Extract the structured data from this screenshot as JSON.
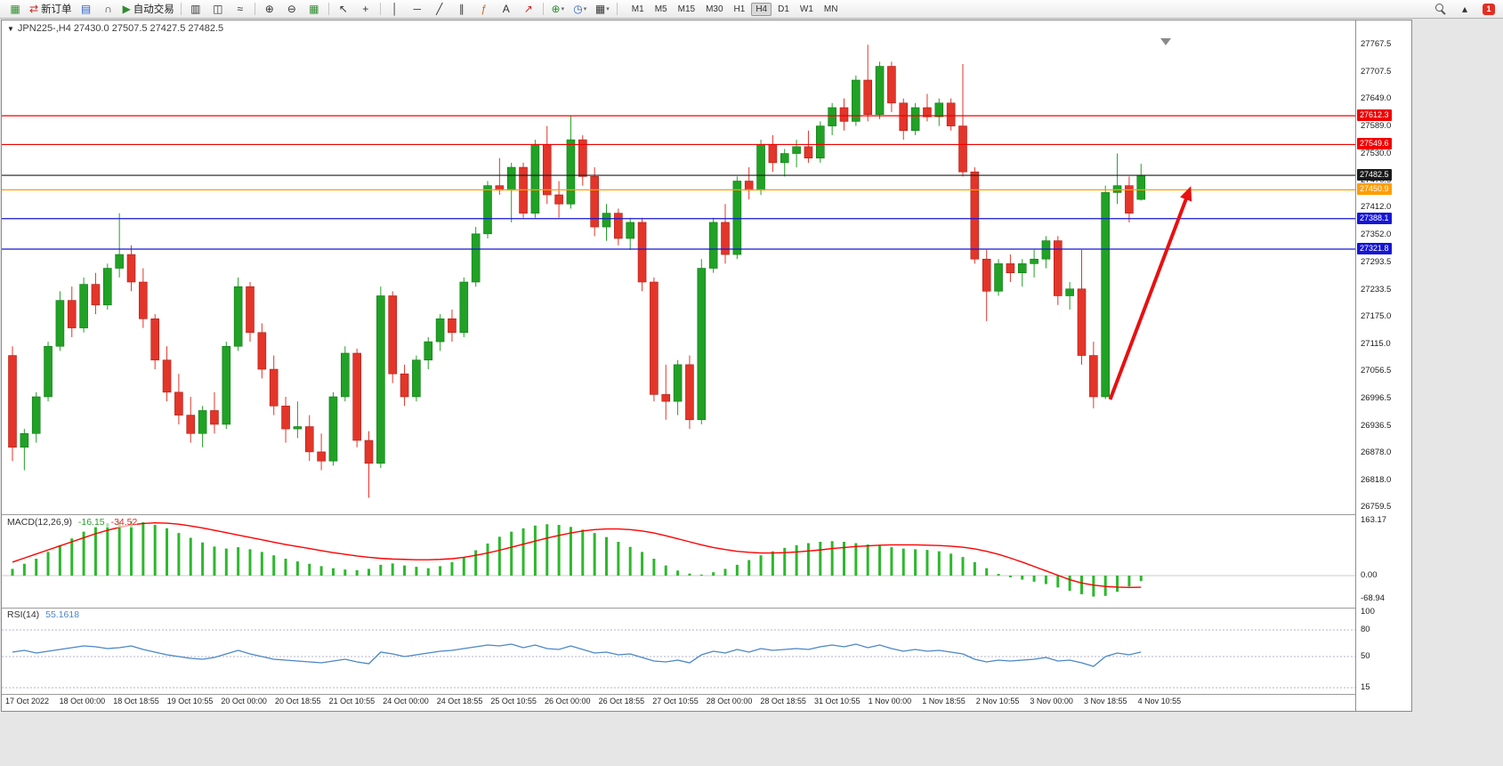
{
  "toolbar": {
    "new_order_label": "新订单",
    "autotrading_label": "自动交易",
    "timeframes": [
      "M1",
      "M5",
      "M15",
      "M30",
      "H1",
      "H4",
      "D1",
      "W1",
      "MN"
    ],
    "active_timeframe": "H4",
    "notification_count": "1",
    "icons": {
      "new_chart": "▦",
      "new_order": "⇄",
      "profiles": "▤",
      "market_depth": "∩",
      "autotrading": "▶",
      "chart_bars": "▥",
      "chart_candles": "◫",
      "chart_line": "≈",
      "zoom_in": "⊕",
      "zoom_out": "⊖",
      "tile_windows": "▦",
      "cursor": "↖",
      "crosshair": "+",
      "vline": "│",
      "hline": "─",
      "trendline": "╱",
      "channel": "∥",
      "fibonacci": "ƒ",
      "text": "A",
      "arrows": "↗",
      "indicators": "⊕",
      "periods": "◷",
      "templates": "▦",
      "scroll_up": "▴"
    }
  },
  "chart": {
    "symbol_period": "JPN225-,H4",
    "ohlc_text": "27430.0 27507.5 27427.5 27482.5",
    "dropdown_glyph": "▼"
  },
  "chart_data": {
    "type": "candlestick",
    "title": "JPN225- H4 chart with MACD and RSI",
    "symbol": "JPN225-",
    "timeframe": "H4",
    "current_bar": {
      "open": 27430.0,
      "high": 27507.5,
      "low": 27427.5,
      "close": 27482.5
    },
    "y_axis": {
      "min": 26748,
      "max": 27785,
      "ticks": [
        27767.5,
        27707.5,
        27649.0,
        27589.0,
        27530.0,
        27470.5,
        27412.0,
        27352.0,
        27293.5,
        27233.5,
        27175.0,
        27115.0,
        27056.5,
        26996.5,
        26936.5,
        26878.0,
        26818.0,
        26759.5
      ]
    },
    "x_labels": [
      "17 Oct 2022",
      "18 Oct 00:00",
      "18 Oct 18:55",
      "19 Oct 10:55",
      "20 Oct 00:00",
      "20 Oct 18:55",
      "21 Oct 10:55",
      "24 Oct 00:00",
      "24 Oct 18:55",
      "25 Oct 10:55",
      "26 Oct 00:00",
      "26 Oct 18:55",
      "27 Oct 10:55",
      "28 Oct 00:00",
      "28 Oct 18:55",
      "31 Oct 10:55",
      "1 Nov 00:00",
      "1 Nov 18:55",
      "2 Nov 10:55",
      "3 Nov 00:00",
      "3 Nov 18:55",
      "4 Nov 10:55"
    ],
    "candles": [
      [
        27090,
        27110,
        26860,
        26890
      ],
      [
        26890,
        26930,
        26840,
        26920
      ],
      [
        26920,
        27010,
        26900,
        27000
      ],
      [
        27000,
        27120,
        26990,
        27110
      ],
      [
        27110,
        27230,
        27100,
        27210
      ],
      [
        27210,
        27240,
        27130,
        27150
      ],
      [
        27150,
        27260,
        27140,
        27245
      ],
      [
        27245,
        27270,
        27180,
        27200
      ],
      [
        27200,
        27290,
        27190,
        27280
      ],
      [
        27280,
        27400,
        27260,
        27310
      ],
      [
        27310,
        27330,
        27230,
        27250
      ],
      [
        27250,
        27280,
        27150,
        27170
      ],
      [
        27170,
        27180,
        27060,
        27080
      ],
      [
        27080,
        27110,
        26990,
        27010
      ],
      [
        27010,
        27050,
        26940,
        26960
      ],
      [
        26960,
        27000,
        26900,
        26920
      ],
      [
        26920,
        26980,
        26890,
        26970
      ],
      [
        26970,
        27010,
        26920,
        26940
      ],
      [
        26940,
        27120,
        26930,
        27110
      ],
      [
        27110,
        27260,
        27100,
        27240
      ],
      [
        27240,
        27250,
        27120,
        27140
      ],
      [
        27140,
        27160,
        27040,
        27060
      ],
      [
        27060,
        27090,
        26960,
        26980
      ],
      [
        26980,
        27000,
        26900,
        26930
      ],
      [
        26930,
        26990,
        26910,
        26935
      ],
      [
        26935,
        26960,
        26860,
        26880
      ],
      [
        26880,
        26920,
        26840,
        26860
      ],
      [
        26860,
        27010,
        26850,
        27000
      ],
      [
        27000,
        27110,
        26990,
        27095
      ],
      [
        27095,
        27105,
        26890,
        26905
      ],
      [
        26905,
        26925,
        26780,
        26855
      ],
      [
        26855,
        27240,
        26845,
        27220
      ],
      [
        27220,
        27230,
        27030,
        27050
      ],
      [
        27050,
        27070,
        26980,
        27000
      ],
      [
        27000,
        27090,
        26990,
        27080
      ],
      [
        27080,
        27130,
        27060,
        27120
      ],
      [
        27120,
        27180,
        27100,
        27170
      ],
      [
        27170,
        27190,
        27120,
        27140
      ],
      [
        27140,
        27260,
        27130,
        27250
      ],
      [
        27250,
        27370,
        27240,
        27355
      ],
      [
        27355,
        27470,
        27345,
        27460
      ],
      [
        27460,
        27520,
        27440,
        27450
      ],
      [
        27450,
        27510,
        27380,
        27500
      ],
      [
        27500,
        27510,
        27390,
        27400
      ],
      [
        27400,
        27560,
        27390,
        27550
      ],
      [
        27550,
        27590,
        27420,
        27440
      ],
      [
        27440,
        27470,
        27390,
        27420
      ],
      [
        27420,
        27612,
        27410,
        27560
      ],
      [
        27560,
        27570,
        27460,
        27480
      ],
      [
        27480,
        27500,
        27350,
        27370
      ],
      [
        27370,
        27420,
        27340,
        27400
      ],
      [
        27400,
        27410,
        27330,
        27345
      ],
      [
        27345,
        27390,
        27320,
        27380
      ],
      [
        27380,
        27390,
        27230,
        27250
      ],
      [
        27250,
        27260,
        26990,
        27005
      ],
      [
        27005,
        27070,
        26950,
        26990
      ],
      [
        26990,
        27080,
        26960,
        27070
      ],
      [
        27070,
        27090,
        26930,
        26950
      ],
      [
        26950,
        27300,
        26940,
        27280
      ],
      [
        27280,
        27390,
        27270,
        27380
      ],
      [
        27380,
        27420,
        27290,
        27310
      ],
      [
        27310,
        27480,
        27300,
        27470
      ],
      [
        27470,
        27500,
        27430,
        27450
      ],
      [
        27450,
        27560,
        27440,
        27550
      ],
      [
        27550,
        27570,
        27490,
        27510
      ],
      [
        27510,
        27540,
        27480,
        27530
      ],
      [
        27530,
        27560,
        27500,
        27545
      ],
      [
        27545,
        27580,
        27510,
        27520
      ],
      [
        27520,
        27600,
        27510,
        27590
      ],
      [
        27590,
        27640,
        27570,
        27630
      ],
      [
        27630,
        27650,
        27580,
        27600
      ],
      [
        27600,
        27700,
        27590,
        27690
      ],
      [
        27690,
        27767,
        27600,
        27615
      ],
      [
        27615,
        27730,
        27605,
        27720
      ],
      [
        27720,
        27730,
        27620,
        27640
      ],
      [
        27640,
        27650,
        27560,
        27580
      ],
      [
        27580,
        27640,
        27570,
        27630
      ],
      [
        27630,
        27660,
        27600,
        27610
      ],
      [
        27610,
        27650,
        27590,
        27640
      ],
      [
        27640,
        27650,
        27580,
        27590
      ],
      [
        27590,
        27725,
        27480,
        27490
      ],
      [
        27490,
        27500,
        27290,
        27300
      ],
      [
        27300,
        27320,
        27165,
        27230
      ],
      [
        27230,
        27300,
        27220,
        27290
      ],
      [
        27290,
        27310,
        27250,
        27270
      ],
      [
        27270,
        27300,
        27240,
        27290
      ],
      [
        27290,
        27320,
        27260,
        27300
      ],
      [
        27300,
        27350,
        27280,
        27340
      ],
      [
        27340,
        27350,
        27200,
        27220
      ],
      [
        27220,
        27250,
        27190,
        27235
      ],
      [
        27235,
        27320,
        27070,
        27090
      ],
      [
        27090,
        27120,
        26975,
        27000
      ],
      [
        27000,
        27460,
        26995,
        27445
      ],
      [
        27445,
        27530,
        27420,
        27460
      ],
      [
        27460,
        27480,
        27380,
        27400
      ],
      [
        27430,
        27507.5,
        27427.5,
        27482.5
      ]
    ],
    "hlines": [
      {
        "price": 27612.3,
        "color": "#f00000"
      },
      {
        "price": 27549.6,
        "color": "#f00000"
      },
      {
        "price": 27482.5,
        "color": "#1a1a1a"
      },
      {
        "price": 27450.9,
        "color": "#ff9d00"
      },
      {
        "price": 27388.1,
        "color": "#1616d6"
      },
      {
        "price": 27321.8,
        "color": "#1616d6"
      }
    ],
    "arrow": {
      "from_bar": 92.4,
      "from_price": 26994,
      "to_bar": 99.2,
      "to_price": 27459,
      "color": "#e81010"
    },
    "macd": {
      "label": "MACD(12,26,9)",
      "value_main": "-16.15",
      "value_signal": "-34.52",
      "scale": [
        163.17,
        0.0,
        -68.94
      ],
      "histogram": [
        20,
        35,
        50,
        70,
        90,
        110,
        130,
        145,
        155,
        160,
        162,
        158,
        150,
        140,
        126,
        112,
        98,
        86,
        80,
        84,
        78,
        70,
        60,
        50,
        42,
        35,
        28,
        22,
        18,
        16,
        20,
        32,
        36,
        30,
        26,
        22,
        28,
        40,
        55,
        75,
        95,
        115,
        130,
        140,
        148,
        152,
        150,
        144,
        136,
        126,
        114,
        100,
        85,
        70,
        50,
        30,
        15,
        6,
        3,
        10,
        20,
        32,
        46,
        60,
        72,
        82,
        90,
        96,
        100,
        102,
        100,
        96,
        92,
        88,
        84,
        80,
        78,
        76,
        72,
        65,
        55,
        40,
        22,
        5,
        -5,
        -12,
        -18,
        -25,
        -35,
        -45,
        -55,
        -62,
        -60,
        -48,
        -32,
        -16
      ],
      "signal": [
        40,
        52,
        64,
        76,
        88,
        100,
        112,
        124,
        134,
        143,
        150,
        154,
        156,
        155,
        152,
        147,
        141,
        134,
        127,
        120,
        113,
        106,
        99,
        92,
        86,
        80,
        74,
        68,
        63,
        58,
        54,
        51,
        49,
        48,
        47,
        47,
        48,
        50,
        54,
        60,
        67,
        75,
        84,
        93,
        102,
        111,
        119,
        126,
        132,
        136,
        138,
        138,
        136,
        132,
        126,
        118,
        109,
        100,
        91,
        83,
        77,
        72,
        69,
        67,
        67,
        68,
        70,
        73,
        76,
        80,
        83,
        86,
        88,
        90,
        91,
        91,
        91,
        90,
        89,
        87,
        84,
        79,
        72,
        63,
        52,
        40,
        27,
        14,
        1,
        -12,
        -22,
        -28,
        -32,
        -34,
        -35,
        -34.5
      ]
    },
    "rsi": {
      "label": "RSI(14)",
      "value": "55.1618",
      "levels": [
        100,
        80,
        50,
        15
      ],
      "levels_dashed": [
        80,
        50,
        15
      ],
      "values": [
        55,
        57,
        54,
        56,
        58,
        60,
        62,
        61,
        59,
        60,
        62,
        58,
        55,
        52,
        50,
        48,
        47,
        49,
        53,
        57,
        53,
        50,
        47,
        46,
        45,
        44,
        43,
        45,
        47,
        44,
        42,
        55,
        53,
        50,
        52,
        54,
        56,
        57,
        59,
        61,
        63,
        62,
        64,
        60,
        63,
        59,
        58,
        62,
        58,
        54,
        55,
        52,
        53,
        49,
        45,
        44,
        46,
        43,
        52,
        56,
        54,
        58,
        55,
        59,
        57,
        58,
        59,
        58,
        61,
        63,
        61,
        64,
        60,
        63,
        59,
        56,
        58,
        56,
        57,
        55,
        53,
        47,
        44,
        46,
        45,
        46,
        47,
        49,
        45,
        46,
        43,
        39,
        50,
        54,
        52,
        55.16
      ]
    },
    "colors": {
      "up": "#21a126",
      "down": "#e3352a",
      "up_border": "#0f7a14",
      "down_border": "#b01d15",
      "macd_hist": "#2db82d",
      "macd_signal": "#ff0000",
      "rsi_line": "#4a86c8",
      "separator": "#9a9a9a"
    }
  }
}
